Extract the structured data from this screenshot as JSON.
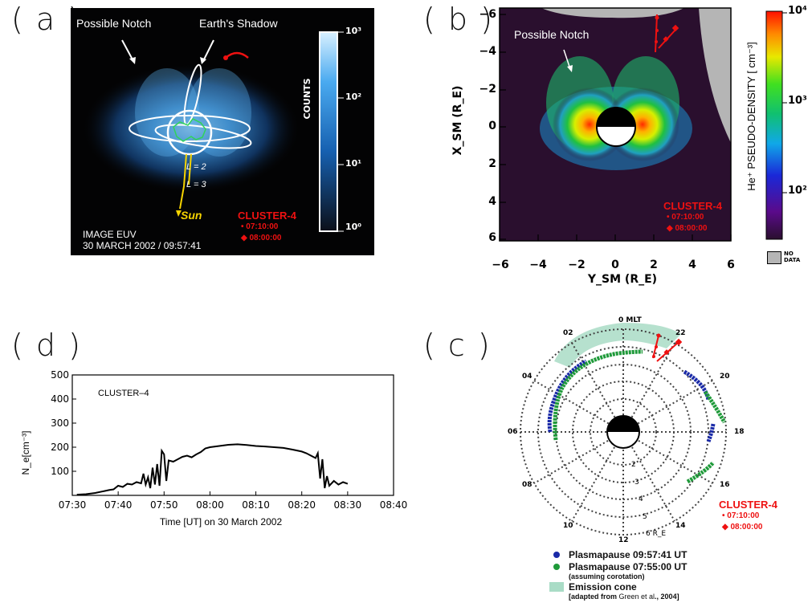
{
  "panels": {
    "a": {
      "label": "( a )",
      "annot_notch": "Possible Notch",
      "annot_shadow": "Earth's Shadow",
      "l2": "L = 2",
      "l3": "L = 3",
      "sun": "Sun",
      "source_line1": "IMAGE EUV",
      "source_line2": "30 MARCH 2002 / 09:57:41",
      "cluster_title": "CLUSTER-4",
      "cluster_t1": "07:10:00",
      "cluster_t2": "08:00:00",
      "colorbar_label": "COUNTS",
      "colorbar_ticks": [
        "10³",
        "10²",
        "10¹",
        "10⁰"
      ]
    },
    "b": {
      "label": "( b )",
      "annot_notch": "Possible Notch",
      "x_axis_label": "Y_SM (R_E)",
      "y_axis_label": "X_SM (R_E)",
      "x_ticks": [
        "−6",
        "−4",
        "−2",
        "0",
        "2",
        "4",
        "6"
      ],
      "y_ticks": [
        "−6",
        "−4",
        "−2",
        "0",
        "2",
        "4",
        "6"
      ],
      "cluster_title": "CLUSTER-4",
      "cluster_t1": "07:10:00",
      "cluster_t2": "08:00:00",
      "colorbar_label": "He⁺ PSEUDO-DENSITY [ cm⁻³]",
      "colorbar_ticks": [
        "10⁴",
        "10³",
        "10²"
      ],
      "no_data_label": "NO DATA"
    },
    "c": {
      "label": "( c )",
      "mlt_labels": [
        "0 MLT",
        "02",
        "04",
        "06",
        "08",
        "10",
        "12",
        "14",
        "16",
        "18",
        "20",
        "22"
      ],
      "radius_labels": [
        "2",
        "3",
        "4",
        "5",
        "6 R_E"
      ],
      "cluster_title": "CLUSTER-4",
      "cluster_t1": "07:10:00",
      "cluster_t2": "08:00:00",
      "legend": {
        "pp1": "Plasmapause 09:57:41 UT",
        "pp2": "Plasmapause 07:55:00 UT",
        "pp2_sub": "(assuming corotation)",
        "cone": "Emission cone",
        "cone_sub_a": "[adapted from ",
        "cone_sub_b": "Green et al",
        "cone_sub_c": "., 2004]"
      }
    },
    "d": {
      "label": "( d )",
      "series_label": "CLUSTER–4",
      "ylabel": "N_e[cm⁻³]",
      "xlabel": "Time [UT] on 30 March 2002"
    }
  },
  "colors": {
    "blue_trace": "#1a2aa8",
    "green_trace": "#1f9a3a",
    "cluster_red": "#ee1111",
    "sun_yellow": "#f5d300",
    "cone_fill": "#a9dcc6"
  },
  "chart_data": [
    {
      "type": "line",
      "panel": "d",
      "title": "",
      "series_name": "CLUSTER–4",
      "xlabel": "Time [UT] on 30 March 2002",
      "ylabel": "N_e[cm⁻³]",
      "x_tick_labels": [
        "07:30",
        "07:40",
        "07:50",
        "08:00",
        "08:10",
        "08:20",
        "08:30",
        "08:40"
      ],
      "y_tick_labels": [
        "100",
        "200",
        "300",
        "400",
        "500"
      ],
      "xlim": [
        "07:30",
        "08:40"
      ],
      "ylim": [
        0,
        500
      ],
      "x": [
        "07:31",
        "07:33",
        "07:35",
        "07:37",
        "07:38",
        "07:39",
        "07:40",
        "07:41",
        "07:42",
        "07:43",
        "07:44",
        "07:45",
        "07:45.5",
        "07:46",
        "07:46.5",
        "07:47",
        "07:47.5",
        "07:48",
        "07:48.5",
        "07:49",
        "07:49.5",
        "07:50",
        "07:50.5",
        "07:51",
        "07:52",
        "07:53",
        "07:54",
        "07:55",
        "07:56",
        "07:57",
        "07:58",
        "07:59",
        "08:00",
        "08:02",
        "08:04",
        "08:06",
        "08:08",
        "08:10",
        "08:12",
        "08:14",
        "08:16",
        "08:18",
        "08:20",
        "08:21",
        "08:22",
        "08:23",
        "08:23.5",
        "08:24",
        "08:24.5",
        "08:25",
        "08:25.5",
        "08:26",
        "08:27",
        "08:28",
        "08:29",
        "08:30"
      ],
      "y": [
        3,
        5,
        10,
        18,
        22,
        25,
        40,
        35,
        48,
        45,
        55,
        50,
        90,
        45,
        75,
        30,
        115,
        45,
        130,
        40,
        185,
        170,
        60,
        145,
        140,
        150,
        160,
        165,
        158,
        170,
        180,
        195,
        200,
        205,
        210,
        212,
        209,
        205,
        203,
        200,
        197,
        190,
        182,
        175,
        165,
        155,
        175,
        70,
        150,
        30,
        80,
        40,
        60,
        45,
        55,
        48
      ]
    },
    {
      "type": "heatmap",
      "panel": "b",
      "title": "",
      "xlabel": "Y_SM (R_E)",
      "ylabel": "X_SM (R_E)",
      "xlim": [
        -6,
        6
      ],
      "ylim": [
        -6,
        6
      ],
      "colorbar_label": "He⁺ PSEUDO-DENSITY [ cm⁻³]",
      "colorbar_range": [
        30,
        10000
      ],
      "colorbar_scale": "log"
    }
  ]
}
